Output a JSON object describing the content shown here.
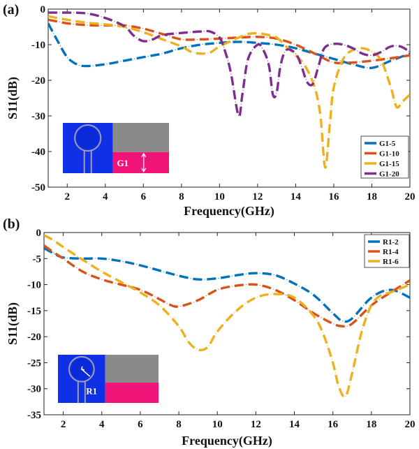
{
  "chart_data": [
    {
      "panel": "(a)",
      "type": "line",
      "title": "",
      "xlabel": "Frequency(GHz)",
      "ylabel": "S11(dB)",
      "xlim": [
        1,
        20
      ],
      "ylim": [
        -50,
        0
      ],
      "xticks": [
        2,
        4,
        6,
        8,
        10,
        12,
        14,
        16,
        18,
        20
      ],
      "yticks": [
        0,
        -10,
        -20,
        -30,
        -40,
        -50
      ],
      "legend_position": "bottom-right",
      "inset_label": "G1",
      "series": [
        {
          "name": "G1-5",
          "color": "#0072BD",
          "x": [
            1,
            1.5,
            2,
            2.5,
            3,
            4,
            5,
            6,
            7,
            8,
            9,
            10,
            11,
            12,
            13,
            14,
            15,
            16,
            17,
            18,
            19,
            20
          ],
          "y": [
            -4,
            -9,
            -13.5,
            -15.5,
            -16,
            -15.5,
            -14.5,
            -13.5,
            -12.5,
            -11,
            -10,
            -9.5,
            -9.2,
            -9.5,
            -10,
            -11,
            -12.5,
            -14,
            -15.5,
            -16.5,
            -14.5,
            -12.5
          ]
        },
        {
          "name": "G1-10",
          "color": "#D95319",
          "x": [
            1,
            1.5,
            2,
            3,
            4,
            5,
            6,
            7,
            8,
            9,
            10,
            11,
            12,
            13,
            14,
            15,
            16,
            17,
            18,
            19,
            20
          ],
          "y": [
            -3,
            -3.5,
            -4,
            -4.5,
            -4.6,
            -4.6,
            -5.5,
            -7,
            -8.5,
            -8.5,
            -8.3,
            -8,
            -7.8,
            -8.3,
            -10,
            -12.5,
            -15,
            -15,
            -14.5,
            -13.8,
            -13
          ]
        },
        {
          "name": "G1-15",
          "color": "#EDB120",
          "x": [
            1,
            2,
            3,
            4,
            5,
            6,
            7,
            8,
            8.5,
            9,
            9.5,
            10,
            11,
            11.5,
            12,
            12.5,
            13,
            13.5,
            14,
            14.5,
            15,
            15.3,
            15.55,
            15.8,
            16,
            16.5,
            17,
            17.5,
            18,
            18.5,
            19,
            19.3,
            19.6,
            20
          ],
          "y": [
            -2,
            -3,
            -3.8,
            -4.3,
            -5,
            -6.5,
            -8.5,
            -10.5,
            -12,
            -12.5,
            -12.2,
            -10.5,
            -8,
            -7,
            -6.8,
            -7.2,
            -8,
            -10.5,
            -13,
            -16,
            -22,
            -30,
            -44.5,
            -32,
            -22,
            -14,
            -11.5,
            -11,
            -12,
            -14.5,
            -22,
            -27.5,
            -26,
            -24
          ]
        },
        {
          "name": "G1-20",
          "color": "#7E2F8E",
          "x": [
            1,
            2,
            3,
            4,
            5,
            5.5,
            6,
            6.5,
            7,
            8,
            9,
            9.5,
            10,
            10.3,
            10.6,
            11,
            11.2,
            11.5,
            12,
            12.3,
            12.6,
            12.8,
            13,
            13.2,
            13.5,
            14,
            14.3,
            14.6,
            14.9,
            15.2,
            15.5,
            16,
            16.5,
            17,
            17.5,
            18,
            18.5,
            19,
            19.5,
            20
          ],
          "y": [
            -1,
            -1,
            -1.2,
            -2.5,
            -4.8,
            -7.5,
            -9,
            -8.5,
            -7.3,
            -6.7,
            -6.3,
            -6.3,
            -8,
            -12,
            -18,
            -30,
            -24,
            -14,
            -10,
            -11.5,
            -16,
            -24,
            -23.5,
            -16,
            -11.5,
            -12.5,
            -16,
            -20.5,
            -21,
            -16,
            -11,
            -9.8,
            -10,
            -11,
            -12.5,
            -13,
            -12,
            -10.5,
            -10.5,
            -12
          ]
        }
      ]
    },
    {
      "panel": "(b)",
      "type": "line",
      "title": "",
      "xlabel": "Frequency(GHz)",
      "ylabel": "S11(dB)",
      "xlim": [
        1,
        20
      ],
      "ylim": [
        -35,
        0
      ],
      "xticks": [
        2,
        4,
        6,
        8,
        10,
        12,
        14,
        16,
        18,
        20
      ],
      "yticks": [
        0,
        -5,
        -10,
        -15,
        -20,
        -25,
        -30,
        -35
      ],
      "legend_position": "top-right",
      "inset_label": "R1",
      "series": [
        {
          "name": "R1-2",
          "color": "#0072BD",
          "x": [
            1,
            1.5,
            2,
            3,
            4,
            5,
            6,
            7,
            8,
            9,
            10,
            11,
            12,
            13,
            14,
            15,
            16,
            16.5,
            17,
            18,
            19,
            20
          ],
          "y": [
            -3,
            -4,
            -4.8,
            -5,
            -5,
            -5.5,
            -6.3,
            -7.3,
            -8.3,
            -9,
            -8.8,
            -8.2,
            -7.8,
            -8.2,
            -9.8,
            -12,
            -15.5,
            -17,
            -16.5,
            -12.5,
            -11,
            -12.5
          ]
        },
        {
          "name": "R1-4",
          "color": "#D95319",
          "x": [
            1,
            1.5,
            2,
            3,
            4,
            5,
            6,
            7,
            7.5,
            8,
            9,
            10,
            11,
            12,
            13,
            14,
            15,
            16,
            16.5,
            17,
            18,
            19,
            20
          ],
          "y": [
            -2.5,
            -3.8,
            -5,
            -7.5,
            -9,
            -10,
            -11,
            -12.8,
            -13.8,
            -14.2,
            -13,
            -11,
            -10.2,
            -10,
            -11,
            -13,
            -15.5,
            -17.5,
            -18,
            -17.5,
            -14,
            -11.5,
            -9.2
          ]
        },
        {
          "name": "R1-6",
          "color": "#EDB120",
          "x": [
            1,
            1.5,
            2,
            3,
            4,
            5,
            6,
            7,
            8,
            8.5,
            9,
            9.5,
            10,
            11,
            12,
            13,
            14,
            15,
            15.5,
            16,
            16.3,
            16.65,
            17,
            17.5,
            18,
            18.5,
            19,
            20
          ],
          "y": [
            -0.5,
            -1.5,
            -2.8,
            -5.2,
            -7.5,
            -9.5,
            -11.5,
            -14,
            -18,
            -21,
            -22.5,
            -22,
            -19,
            -15,
            -12.5,
            -11.8,
            -12.5,
            -16,
            -19.5,
            -25,
            -29.5,
            -31.5,
            -27,
            -19,
            -14,
            -12,
            -11.5,
            -10
          ]
        }
      ]
    }
  ]
}
